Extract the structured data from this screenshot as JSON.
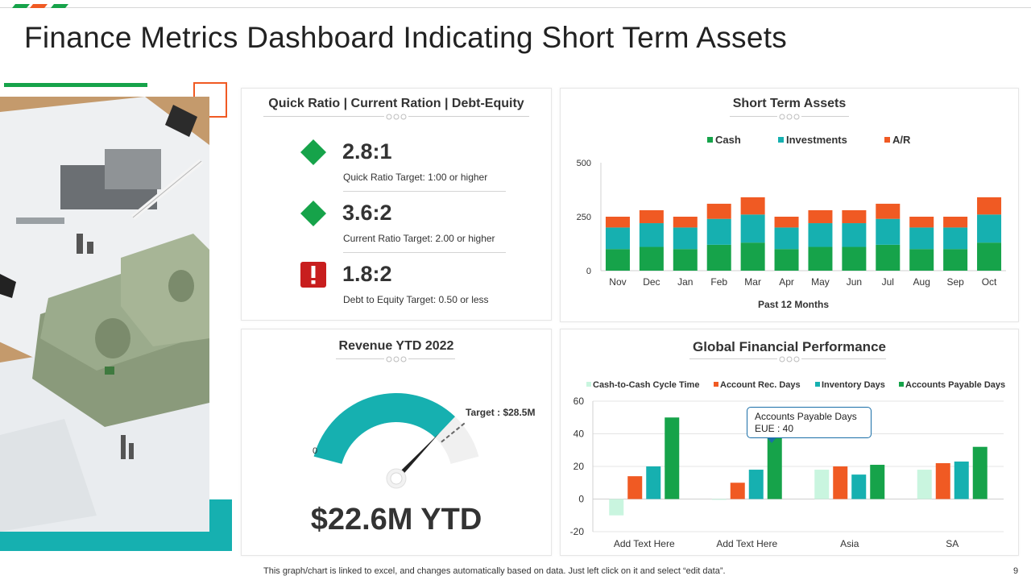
{
  "page": {
    "title": "Finance Metrics Dashboard Indicating Short Term Assets",
    "footer": "This graph/chart is linked to excel,  and changes automatically based on data. Just left click on it and select “edit data”.",
    "page_number": "9"
  },
  "colors": {
    "green": "#16a34a",
    "teal": "#16b0b0",
    "orange": "#f05a23",
    "light_green": "#c9f5df",
    "red": "#c81e1e",
    "grey": "#f0f0f0"
  },
  "ratios": {
    "title": "Quick Ratio | Current Ration | Debt-Equity",
    "items": [
      {
        "value": "2.8:1",
        "label": "Quick Ratio Target: 1:00 or higher",
        "icon": "green-diamond-icon"
      },
      {
        "value": "3.6:2",
        "label": "Current Ratio Target: 2.00 or higher",
        "icon": "green-diamond-icon"
      },
      {
        "value": "1.8:2",
        "label": "Debt to Equity Target: 0.50 or less",
        "icon": "red-alert-icon"
      }
    ]
  },
  "revenue": {
    "title": "Revenue YTD 2022",
    "value_label": "$22.6M YTD",
    "zero_label": "0",
    "target_label": "Target : $28.5M",
    "gauge_fraction": 0.79,
    "target_fraction": 0.84,
    "gauge_max_fraction": 1.0
  },
  "short_term_assets": {
    "title": "Short Term Assets",
    "chart_data": {
      "type": "bar",
      "stacked": true,
      "categories": [
        "Nov",
        "Dec",
        "Jan",
        "Feb",
        "Mar",
        "Apr",
        "May",
        "Jun",
        "Jul",
        "Aug",
        "Sep",
        "Oct"
      ],
      "series": [
        {
          "name": "Cash",
          "values": [
            100,
            110,
            100,
            120,
            130,
            100,
            110,
            110,
            120,
            100,
            100,
            130
          ]
        },
        {
          "name": "Investments",
          "values": [
            100,
            110,
            100,
            120,
            130,
            100,
            110,
            110,
            120,
            100,
            100,
            130
          ]
        },
        {
          "name": "A/R",
          "values": [
            50,
            60,
            50,
            70,
            80,
            50,
            60,
            60,
            70,
            50,
            50,
            80
          ]
        }
      ],
      "xlabel": "Past 12 Months",
      "ylabel": "",
      "yticks": [
        "0",
        "250",
        "500"
      ],
      "ylim": [
        0,
        500
      ],
      "legend": "top"
    }
  },
  "global_performance": {
    "title": "Global Financial Performance",
    "tooltip": {
      "title": "Accounts Payable Days",
      "value": "EUE : 40"
    },
    "chart_data": {
      "type": "bar",
      "categories": [
        "Add Text Here",
        "Add Text Here",
        "Asia",
        "SA"
      ],
      "series": [
        {
          "name": "Cash-to-Cash Cycle Time",
          "values": [
            -10,
            0,
            18,
            18
          ]
        },
        {
          "name": "Account Rec. Days",
          "values": [
            14,
            10,
            20,
            22
          ]
        },
        {
          "name": "Inventory Days",
          "values": [
            20,
            18,
            15,
            23
          ]
        },
        {
          "name": "Accounts Payable Days",
          "values": [
            50,
            40,
            21,
            32
          ]
        }
      ],
      "yticks": [
        "-20",
        "0",
        "20",
        "40",
        "60"
      ],
      "ylim": [
        -20,
        60
      ],
      "grid": true,
      "legend": "top"
    }
  }
}
